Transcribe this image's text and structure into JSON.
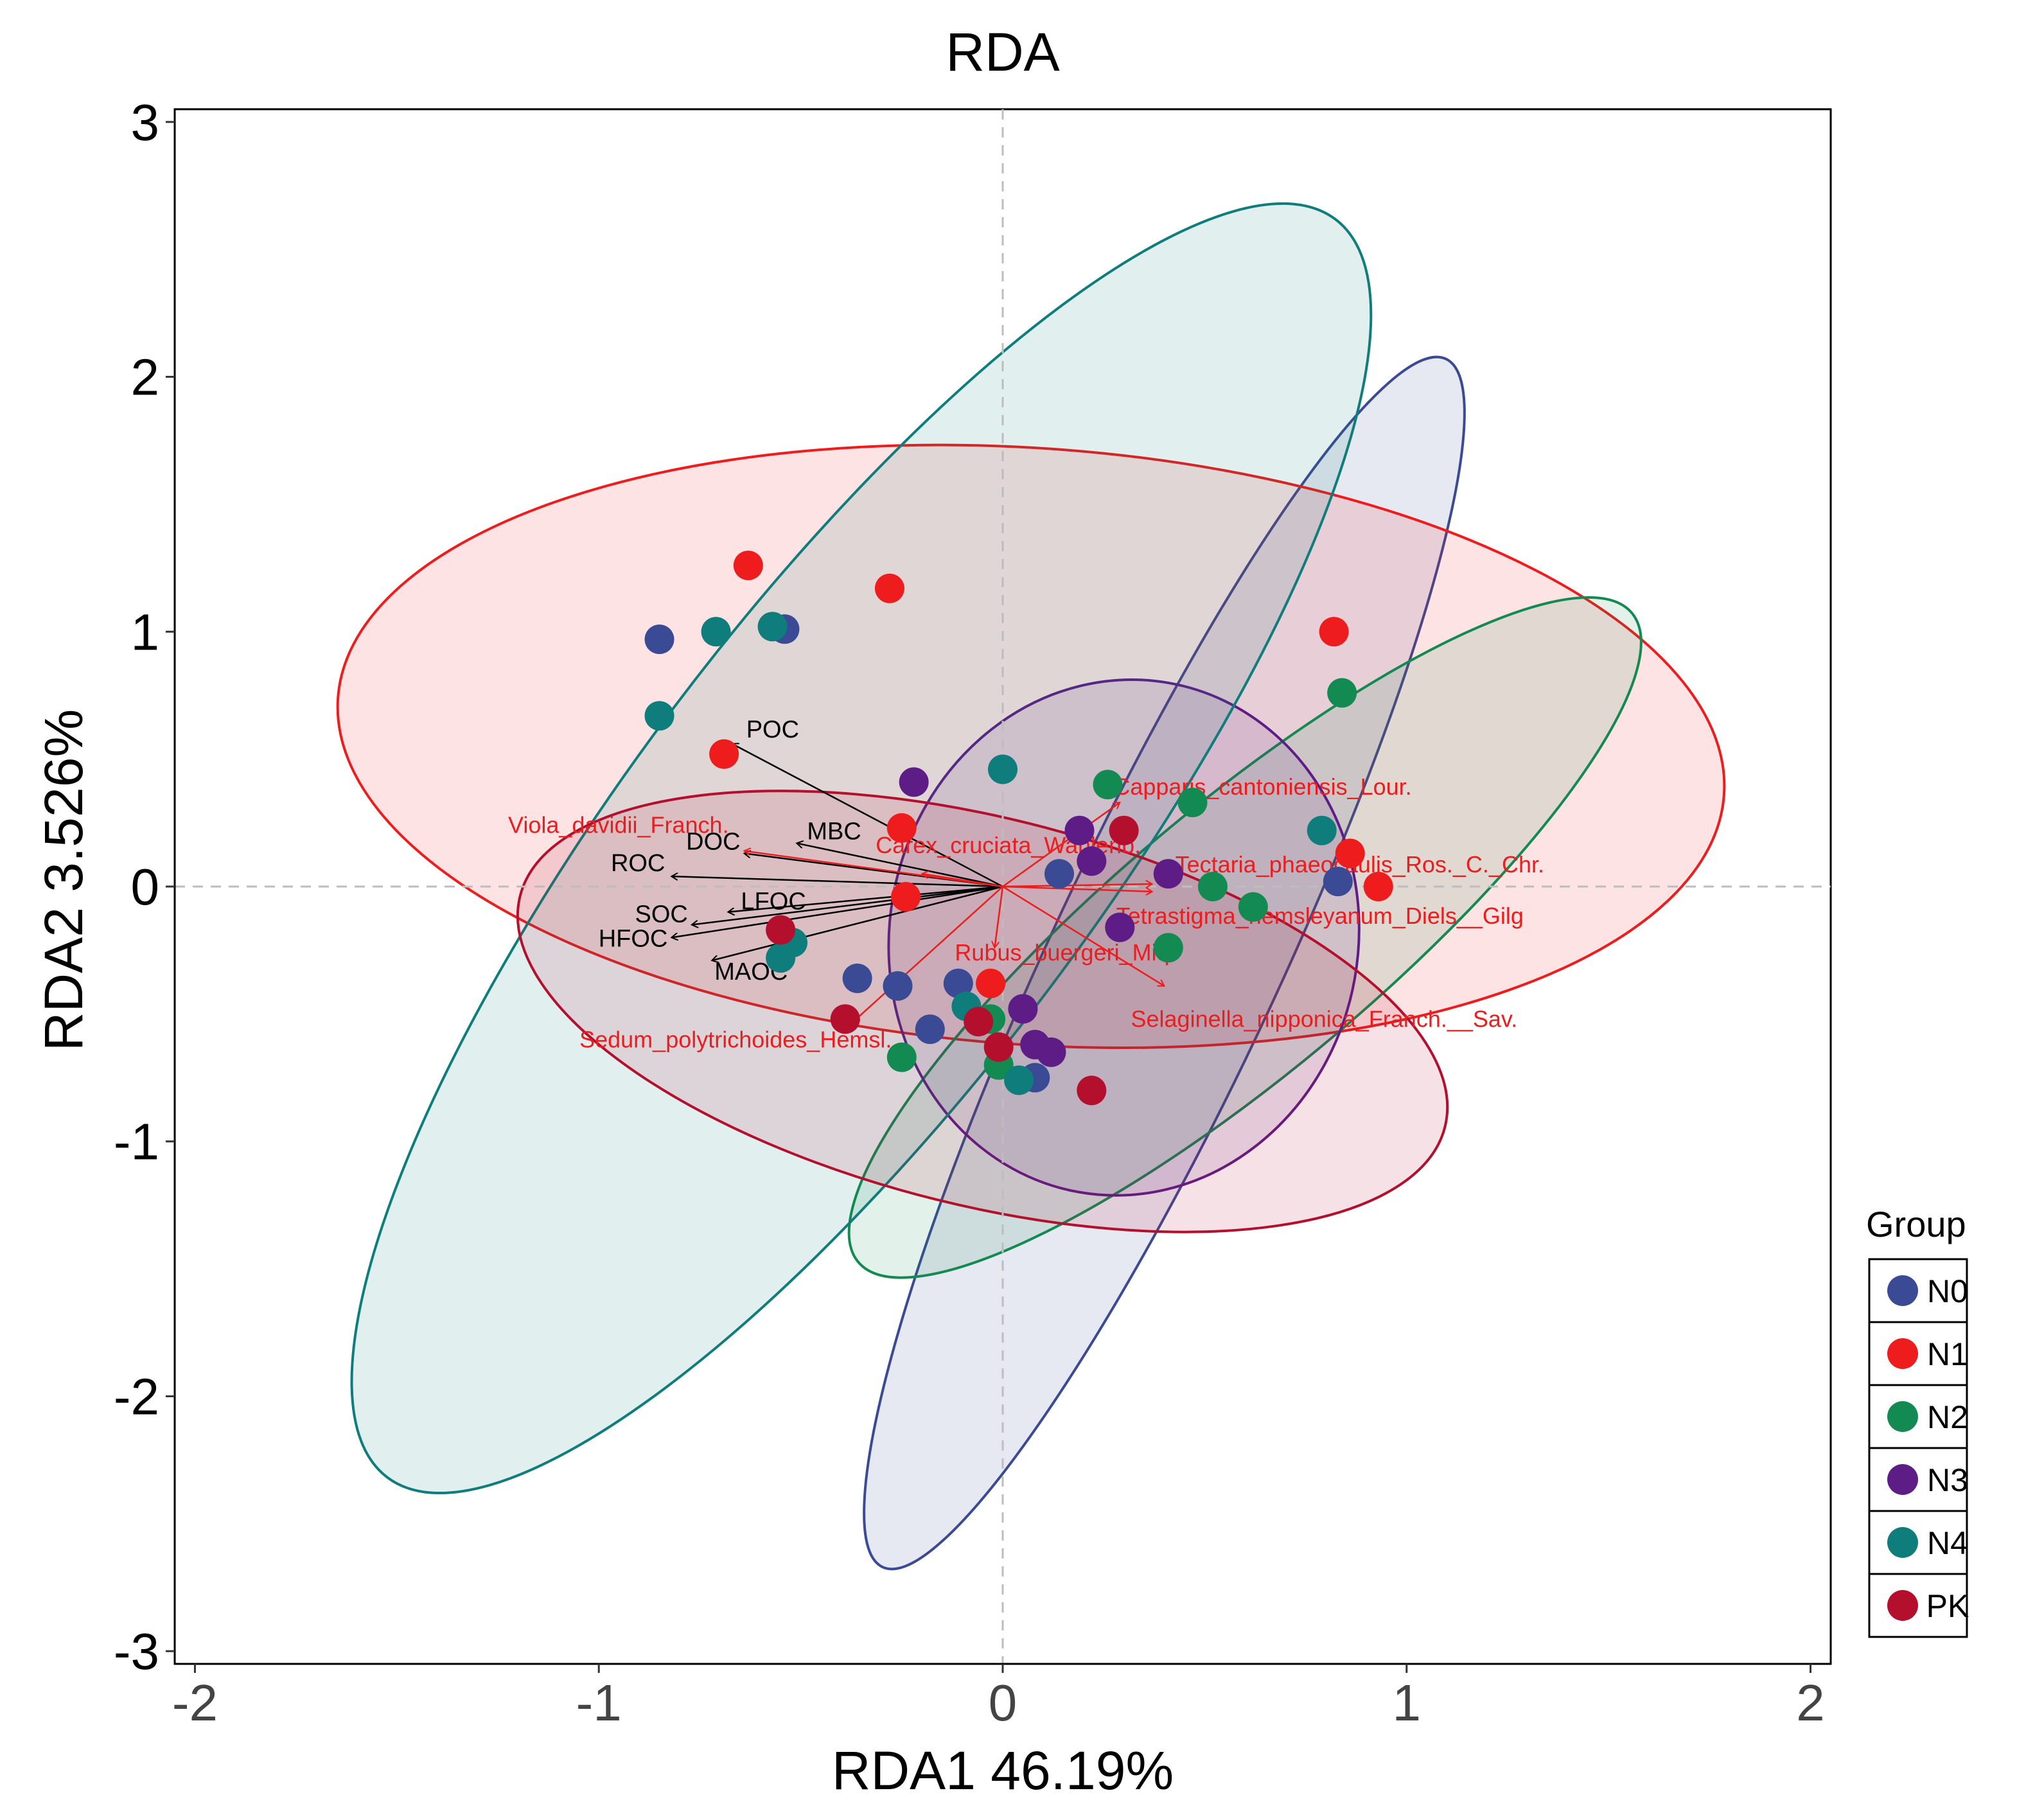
{
  "chart_data": {
    "type": "scatter",
    "title": "RDA",
    "xlabel": "RDA1 46.19%",
    "ylabel": "RDA2 3.526%",
    "xlim": [
      -2.05,
      2.05
    ],
    "ylim": [
      -3.05,
      3.05
    ],
    "x_ticks": [
      -2,
      -1,
      0,
      1,
      2
    ],
    "x_tick_labels": [
      "-2",
      "-1",
      "0",
      "1",
      "2"
    ],
    "y_ticks": [
      -3,
      -2,
      -1,
      0,
      1,
      2,
      3
    ],
    "y_tick_labels": [
      "-3",
      "-2",
      "-1",
      "0",
      "1",
      "2",
      "3"
    ],
    "grid": false,
    "reference_lines": "dashed at x=0 and y=0",
    "legend": {
      "title": "Group",
      "position": "right"
    },
    "series": [
      {
        "name": "N0",
        "color": "#3B4A95",
        "points": [
          [
            -0.85,
            0.97
          ],
          [
            -0.54,
            1.01
          ],
          [
            0.14,
            0.05
          ],
          [
            -0.36,
            -0.36
          ],
          [
            -0.26,
            -0.39
          ],
          [
            -0.11,
            -0.38
          ],
          [
            -0.18,
            -0.56
          ],
          [
            0.08,
            -0.75
          ],
          [
            0.83,
            0.02
          ]
        ],
        "ellipse": {
          "cx": 0.4,
          "cy": -0.3,
          "rx": 1.65,
          "ry": 0.45,
          "angle_deg": 65
        }
      },
      {
        "name": "N1",
        "color": "#EE1C1C",
        "points": [
          [
            -0.63,
            1.26
          ],
          [
            -0.28,
            1.17
          ],
          [
            0.82,
            1.0
          ],
          [
            -0.69,
            0.52
          ],
          [
            -0.25,
            0.23
          ],
          [
            -0.24,
            -0.04
          ],
          [
            -0.03,
            -0.38
          ],
          [
            0.86,
            0.13
          ],
          [
            0.93,
            0.0
          ]
        ],
        "ellipse": {
          "cx": 0.07,
          "cy": 0.55,
          "rx": 1.72,
          "ry": 1.17,
          "angle_deg": -4
        }
      },
      {
        "name": "N2",
        "color": "#138A51",
        "points": [
          [
            0.26,
            0.4
          ],
          [
            0.47,
            0.33
          ],
          [
            0.84,
            0.76
          ],
          [
            0.52,
            0.0
          ],
          [
            0.62,
            -0.08
          ],
          [
            0.41,
            -0.24
          ],
          [
            -0.25,
            -0.67
          ],
          [
            -0.01,
            -0.7
          ],
          [
            -0.03,
            -0.52
          ]
        ],
        "ellipse": {
          "cx": 0.6,
          "cy": -0.2,
          "rx": 1.25,
          "ry": 0.52,
          "angle_deg": 40
        }
      },
      {
        "name": "N3",
        "color": "#5E1D86",
        "points": [
          [
            -0.22,
            0.41
          ],
          [
            0.19,
            0.22
          ],
          [
            0.22,
            0.1
          ],
          [
            0.41,
            0.05
          ],
          [
            0.29,
            -0.16
          ],
          [
            0.05,
            -0.48
          ],
          [
            0.08,
            -0.62
          ],
          [
            0.12,
            -0.65
          ]
        ],
        "ellipse": {
          "cx": 0.3,
          "cy": -0.2,
          "rx": 0.64,
          "ry": 0.92,
          "angle_deg": 80
        }
      },
      {
        "name": "N4",
        "color": "#0E7D7C",
        "points": [
          [
            -0.71,
            1.0
          ],
          [
            -0.57,
            1.02
          ],
          [
            -0.85,
            0.67
          ],
          [
            0.0,
            0.46
          ],
          [
            0.79,
            0.22
          ],
          [
            -0.52,
            -0.22
          ],
          [
            -0.55,
            -0.28
          ],
          [
            -0.09,
            -0.47
          ],
          [
            0.04,
            -0.76
          ]
        ],
        "ellipse": {
          "cx": -0.35,
          "cy": 0.15,
          "rx": 1.95,
          "ry": 0.92,
          "angle_deg": 53
        }
      },
      {
        "name": "PK",
        "color": "#B4102E",
        "points": [
          [
            0.3,
            0.22
          ],
          [
            -0.55,
            -0.17
          ],
          [
            -0.39,
            -0.52
          ],
          [
            -0.06,
            -0.53
          ],
          [
            -0.01,
            -0.63
          ],
          [
            0.22,
            -0.8
          ]
        ],
        "ellipse": {
          "cx": -0.05,
          "cy": -0.49,
          "rx": 1.18,
          "ry": 0.76,
          "angle_deg": -14
        }
      }
    ],
    "env_vectors": [
      {
        "label": "POC",
        "x": -0.67,
        "y": 0.56
      },
      {
        "label": "MBC",
        "x": -0.51,
        "y": 0.17
      },
      {
        "label": "DOC",
        "x": -0.64,
        "y": 0.13
      },
      {
        "label": "ROC",
        "x": -0.82,
        "y": 0.04
      },
      {
        "label": "LFOC",
        "x": -0.68,
        "y": -0.1
      },
      {
        "label": "SOC",
        "x": -0.77,
        "y": -0.15
      },
      {
        "label": "HFOC",
        "x": -0.82,
        "y": -0.2
      },
      {
        "label": "MAOC",
        "x": -0.72,
        "y": -0.29
      }
    ],
    "species_vectors": [
      {
        "label": "Capparis_cantoniensis_Lour.",
        "x": 0.29,
        "y": 0.33
      },
      {
        "label": "Viola_davidii_Franch.",
        "x": -0.64,
        "y": 0.14
      },
      {
        "label": "Carex_cruciata_Wahlenb.",
        "x": -0.2,
        "y": 0.05
      },
      {
        "label": "Tectaria_phaeocaulis_Ros._C._Chr.",
        "x": 0.37,
        "y": 0.01
      },
      {
        "label": "Tetrastigma_hemsleyanum_Diels__Gilg",
        "x": 0.37,
        "y": -0.02
      },
      {
        "label": "Rubus_buergeri_Miq.",
        "x": -0.02,
        "y": -0.24
      },
      {
        "label": "Selaginella_nipponica_Franch.__Sav.",
        "x": 0.4,
        "y": -0.39
      },
      {
        "label": "Sedum_polytrichoides_Hemsl.",
        "x": -0.37,
        "y": -0.53
      }
    ]
  }
}
